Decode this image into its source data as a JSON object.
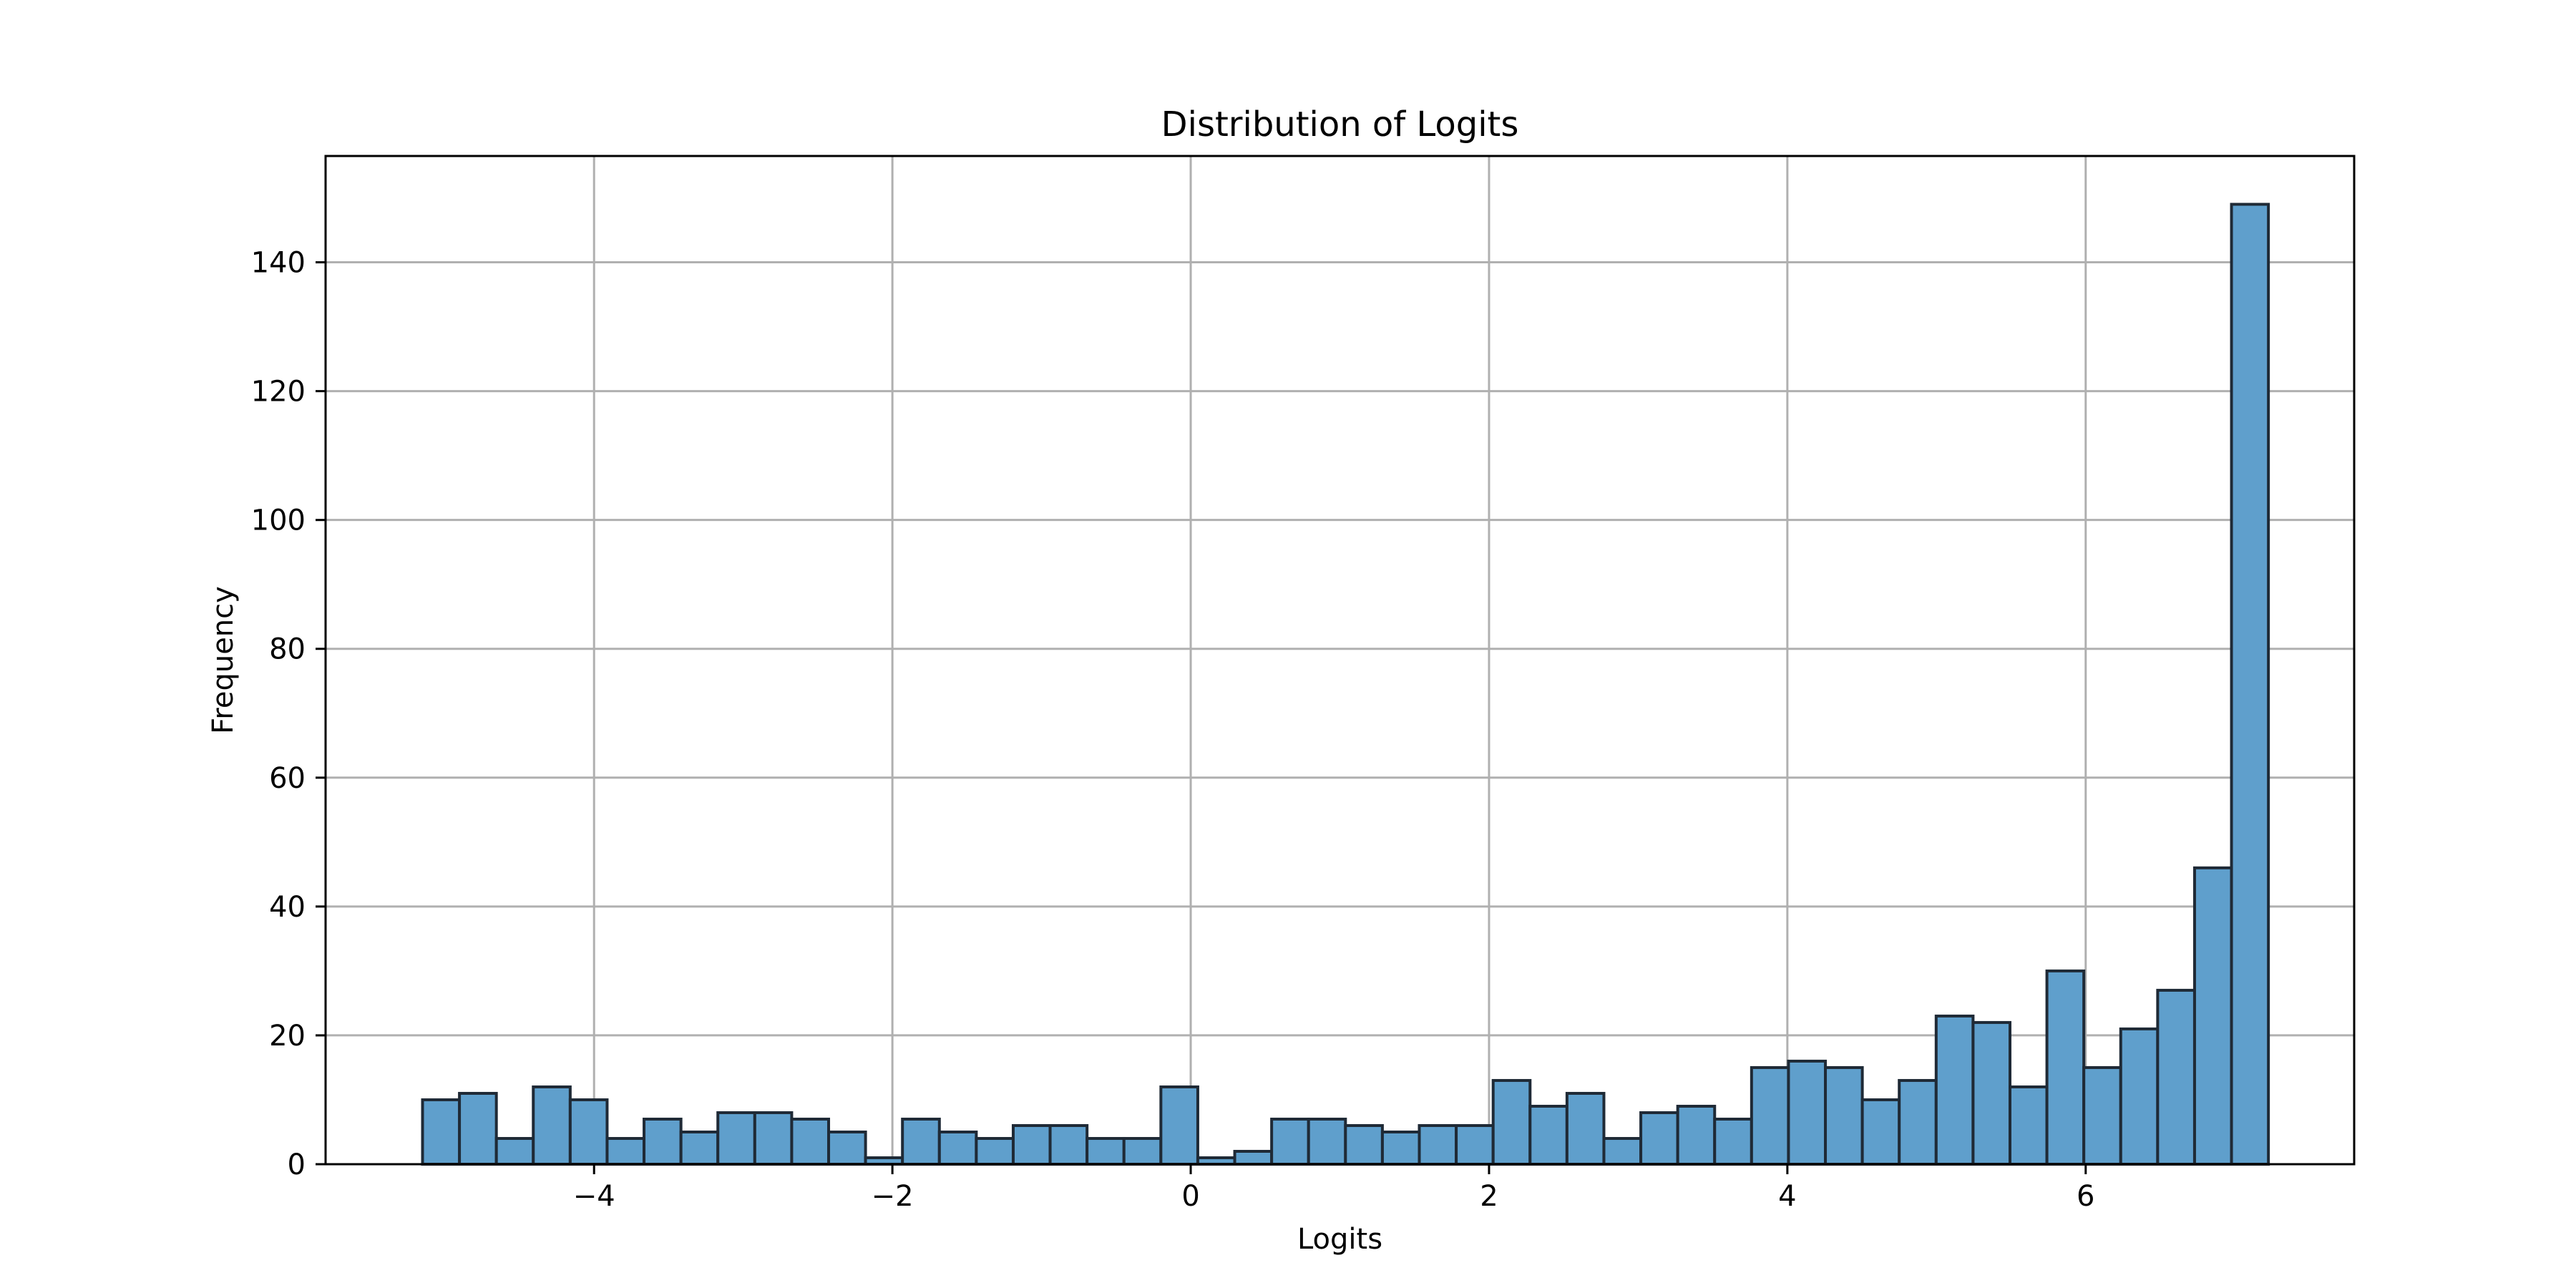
{
  "chart_data": {
    "type": "bar",
    "title": "Distribution of Logits",
    "xlabel": "Logits",
    "ylabel": "Frequency",
    "xlim": [
      -5.8,
      7.8
    ],
    "ylim": [
      0,
      156.5
    ],
    "grid": true,
    "bar_color": "#5f9fcc",
    "edge_color": "#1f2a36",
    "bin_start": -5.15,
    "bin_width": 0.2475,
    "values": [
      10,
      11,
      4,
      12,
      10,
      4,
      7,
      5,
      8,
      8,
      7,
      5,
      1,
      7,
      5,
      4,
      6,
      6,
      4,
      4,
      12,
      1,
      2,
      7,
      7,
      6,
      5,
      6,
      6,
      13,
      9,
      11,
      4,
      8,
      9,
      7,
      15,
      16,
      15,
      10,
      13,
      23,
      22,
      12,
      30,
      15,
      21,
      27,
      46,
      149
    ],
    "x_ticks": [
      -4,
      -2,
      0,
      2,
      4,
      6
    ],
    "x_tick_labels": [
      "−4",
      "−2",
      "0",
      "2",
      "4",
      "6"
    ],
    "y_ticks": [
      0,
      20,
      40,
      60,
      80,
      100,
      120,
      140
    ],
    "y_tick_labels": [
      "0",
      "20",
      "40",
      "60",
      "80",
      "100",
      "120",
      "140"
    ]
  }
}
